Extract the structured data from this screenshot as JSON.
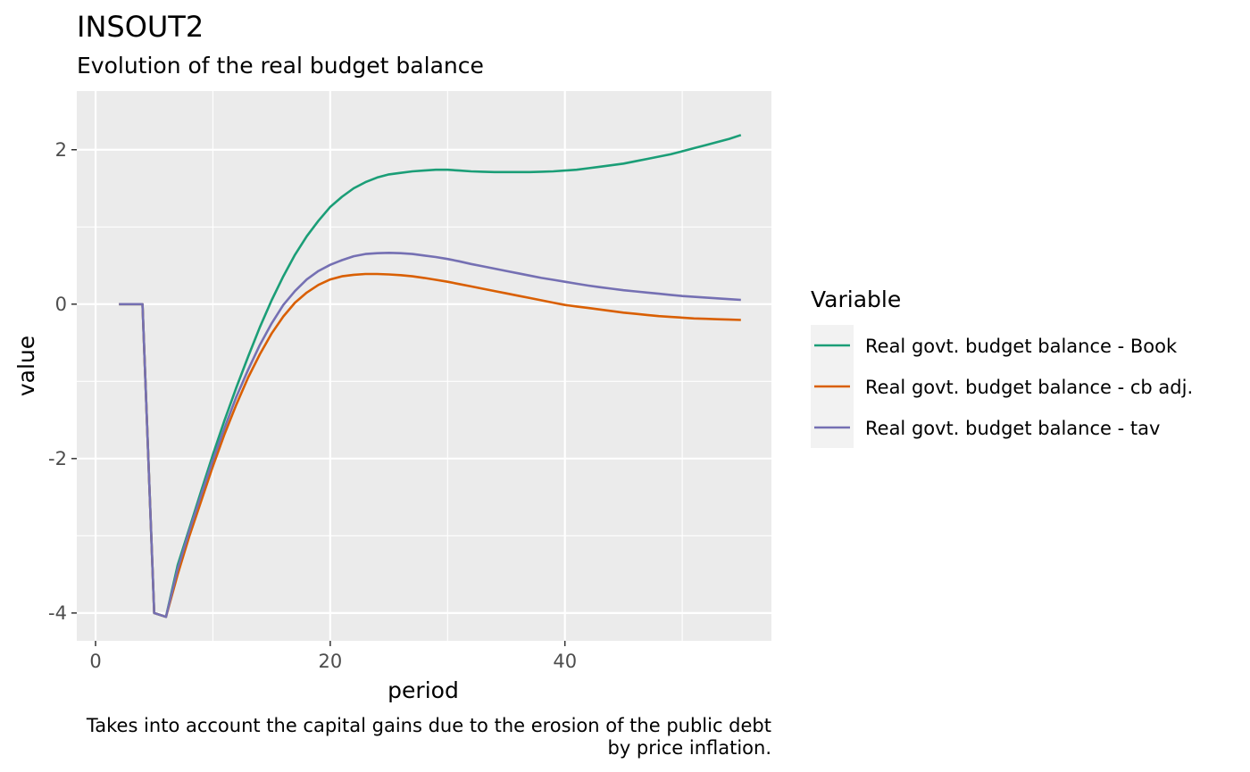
{
  "chart_data": {
    "type": "line",
    "title": "INSOUT2",
    "subtitle": "Evolution of the real budget balance",
    "xlabel": "period",
    "ylabel": "value",
    "caption_lines": [
      "Takes into account the capital gains due to the erosion of the public debt",
      "by price inflation."
    ],
    "xlim": [
      -1.6,
      57.6
    ],
    "ylim": [
      -4.36,
      2.76
    ],
    "x_ticks": [
      0,
      20,
      40
    ],
    "y_ticks": [
      -4,
      -2,
      0,
      2
    ],
    "y_tick_labels": [
      "-4",
      "-2",
      "0",
      "2"
    ],
    "grid": true,
    "legend": {
      "title": "Variable",
      "position": "right"
    },
    "x": [
      2,
      3,
      4,
      5,
      6,
      7,
      8,
      9,
      10,
      11,
      12,
      13,
      14,
      15,
      16,
      17,
      18,
      19,
      20,
      21,
      22,
      23,
      24,
      25,
      26,
      27,
      28,
      29,
      30,
      31,
      32,
      33,
      34,
      35,
      36,
      37,
      38,
      39,
      40,
      41,
      42,
      43,
      44,
      45,
      46,
      47,
      48,
      49,
      50,
      51,
      52,
      53,
      54,
      55
    ],
    "series": [
      {
        "name": "Real govt. budget balance - Book",
        "color": "#1b9e77",
        "values": [
          0,
          0,
          0,
          -4.0,
          -4.05,
          -3.38,
          -2.9,
          -2.42,
          -1.95,
          -1.5,
          -1.08,
          -0.68,
          -0.3,
          0.05,
          0.36,
          0.64,
          0.88,
          1.08,
          1.26,
          1.39,
          1.5,
          1.58,
          1.64,
          1.68,
          1.7,
          1.72,
          1.73,
          1.74,
          1.74,
          1.73,
          1.72,
          1.715,
          1.71,
          1.71,
          1.71,
          1.71,
          1.715,
          1.72,
          1.73,
          1.74,
          1.76,
          1.78,
          1.8,
          1.82,
          1.85,
          1.88,
          1.91,
          1.94,
          1.98,
          2.02,
          2.06,
          2.1,
          2.14,
          2.19
        ]
      },
      {
        "name": "Real govt. budget balance - cb adj.",
        "color": "#d95f02",
        "values": [
          0,
          0,
          0,
          -4.0,
          -4.05,
          -3.5,
          -3.0,
          -2.55,
          -2.1,
          -1.68,
          -1.3,
          -0.95,
          -0.65,
          -0.38,
          -0.16,
          0.02,
          0.15,
          0.25,
          0.32,
          0.36,
          0.38,
          0.39,
          0.39,
          0.385,
          0.375,
          0.36,
          0.34,
          0.315,
          0.29,
          0.26,
          0.23,
          0.2,
          0.17,
          0.14,
          0.11,
          0.08,
          0.05,
          0.02,
          -0.01,
          -0.03,
          -0.05,
          -0.07,
          -0.09,
          -0.11,
          -0.125,
          -0.14,
          -0.155,
          -0.165,
          -0.175,
          -0.185,
          -0.19,
          -0.195,
          -0.2,
          -0.205
        ]
      },
      {
        "name": "Real govt. budget balance - tav",
        "color": "#7570b3",
        "values": [
          0,
          0,
          0,
          -4.0,
          -4.05,
          -3.43,
          -2.93,
          -2.47,
          -2.02,
          -1.6,
          -1.2,
          -0.85,
          -0.53,
          -0.25,
          -0.01,
          0.17,
          0.32,
          0.43,
          0.51,
          0.57,
          0.62,
          0.65,
          0.66,
          0.665,
          0.66,
          0.65,
          0.63,
          0.61,
          0.585,
          0.555,
          0.52,
          0.49,
          0.46,
          0.43,
          0.4,
          0.37,
          0.34,
          0.315,
          0.29,
          0.265,
          0.24,
          0.22,
          0.2,
          0.18,
          0.165,
          0.15,
          0.135,
          0.12,
          0.105,
          0.095,
          0.085,
          0.075,
          0.065,
          0.055
        ]
      }
    ]
  }
}
